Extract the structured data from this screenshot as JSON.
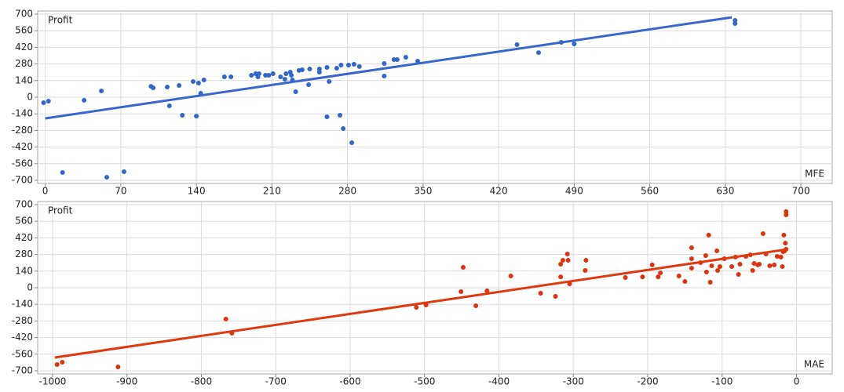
{
  "chart_data": [
    {
      "type": "scatter",
      "ylabel": "Profit",
      "xlabel": "MFE",
      "color": "#3366cc",
      "grid": true,
      "xlim": [
        -7,
        729
      ],
      "ylim": [
        -700,
        700
      ],
      "xticks": [
        0,
        70,
        140,
        210,
        280,
        350,
        420,
        490,
        560,
        630,
        700
      ],
      "yticks": [
        -700,
        -560,
        -420,
        -280,
        -140,
        0,
        140,
        280,
        420,
        560,
        700
      ],
      "x": [
        -1.5,
        3,
        16,
        36,
        52,
        57,
        73,
        98,
        100,
        113,
        115,
        124,
        127,
        137,
        140,
        142,
        144,
        147,
        166,
        172,
        191,
        195,
        197,
        198,
        204,
        207,
        211,
        218,
        222,
        223,
        227,
        228,
        229,
        232,
        235,
        238,
        244,
        245,
        254,
        254,
        261,
        261,
        263,
        270,
        273,
        274,
        276,
        281,
        284,
        286,
        291,
        314,
        314,
        323,
        326,
        334,
        345,
        437,
        457,
        478,
        490,
        639,
        639
      ],
      "values": [
        -46,
        -33,
        -634,
        -26,
        53,
        -674,
        -627,
        92,
        79,
        86,
        -73,
        99,
        -152,
        132,
        -159,
        119,
        33,
        145,
        172,
        172,
        185,
        198,
        172,
        198,
        185,
        185,
        198,
        172,
        152,
        198,
        211,
        185,
        145,
        46,
        225,
        231,
        106,
        238,
        238,
        211,
        251,
        -165,
        132,
        244,
        -152,
        271,
        -264,
        271,
        -383,
        277,
        258,
        284,
        178,
        317,
        317,
        337,
        304,
        443,
        376,
        462,
        449,
        647,
        621
      ],
      "trendline": {
        "color": "#3a66cc",
        "x": [
          0,
          636
        ],
        "values": [
          -178,
          673
        ]
      }
    },
    {
      "type": "scatter",
      "ylabel": "Profit",
      "xlabel": "MAE",
      "color": "#dd3311",
      "grid": true,
      "xlim": [
        -1020,
        48
      ],
      "ylim": [
        -700,
        700
      ],
      "xticks": [
        -1000,
        -900,
        -800,
        -700,
        -600,
        -500,
        -400,
        -300,
        -200,
        -100,
        0
      ],
      "yticks": [
        -700,
        -560,
        -420,
        -280,
        -140,
        0,
        140,
        280,
        420,
        560,
        700
      ],
      "x": [
        -994,
        -987,
        -912,
        -767,
        -759,
        -511,
        -498,
        -451,
        -448,
        -431,
        -416,
        -384,
        -344,
        -314,
        -324,
        -317,
        -317,
        -308,
        -307,
        -305,
        -284,
        -283,
        -230,
        -207,
        -194,
        -186,
        -183,
        -158,
        -150,
        -141,
        -141,
        -141,
        -129,
        -122,
        -121,
        -118,
        -116,
        -114,
        -107,
        -106,
        -103,
        -97,
        -87,
        -82,
        -78,
        -76,
        -68,
        -62,
        -59,
        -57,
        -52,
        -50,
        -45,
        -41,
        -36,
        -30,
        -26,
        -21,
        -19,
        -18,
        -17,
        -16,
        -15,
        -14,
        -14,
        -14
      ],
      "values": [
        -647,
        -627,
        -667,
        -264,
        -383,
        -165,
        -145,
        -33,
        172,
        -152,
        -26,
        99,
        -46,
        231,
        -73,
        92,
        198,
        284,
        231,
        33,
        145,
        231,
        86,
        92,
        192,
        92,
        125,
        99,
        53,
        165,
        244,
        337,
        211,
        271,
        132,
        443,
        46,
        185,
        310,
        145,
        178,
        244,
        178,
        258,
        112,
        198,
        264,
        277,
        145,
        205,
        192,
        198,
        456,
        284,
        185,
        192,
        264,
        258,
        178,
        304,
        443,
        310,
        376,
        324,
        641,
        614
      ],
      "trendline": {
        "color": "#dd3a10",
        "x": [
          -997,
          -12
        ],
        "values": [
          -588,
          324
        ]
      }
    }
  ]
}
